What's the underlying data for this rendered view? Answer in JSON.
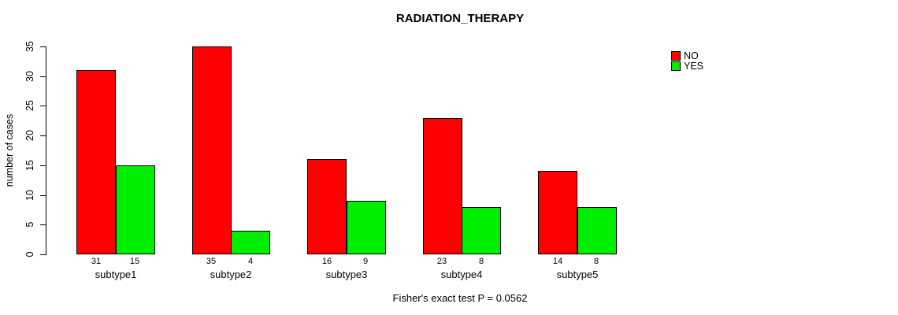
{
  "chart_data": {
    "type": "bar",
    "title": "RADIATION_THERAPY",
    "caption": "Fisher's exact test P = 0.0562",
    "xlabel": "",
    "ylabel": "number of cases",
    "categories": [
      "subtype1",
      "subtype2",
      "subtype3",
      "subtype4",
      "subtype5"
    ],
    "series": [
      {
        "name": "NO",
        "color": "#ff0000",
        "values": [
          31,
          35,
          16,
          23,
          14
        ]
      },
      {
        "name": "YES",
        "color": "#00ee00",
        "values": [
          15,
          4,
          9,
          8,
          8
        ]
      }
    ],
    "ylim": [
      0,
      35
    ],
    "yticks": [
      0,
      5,
      10,
      15,
      20,
      25,
      30,
      35
    ],
    "grid": false,
    "legend_position": "top-right",
    "show_bar_values": true,
    "bar_outline_color": "#000000",
    "background_color": "#ffffff"
  }
}
